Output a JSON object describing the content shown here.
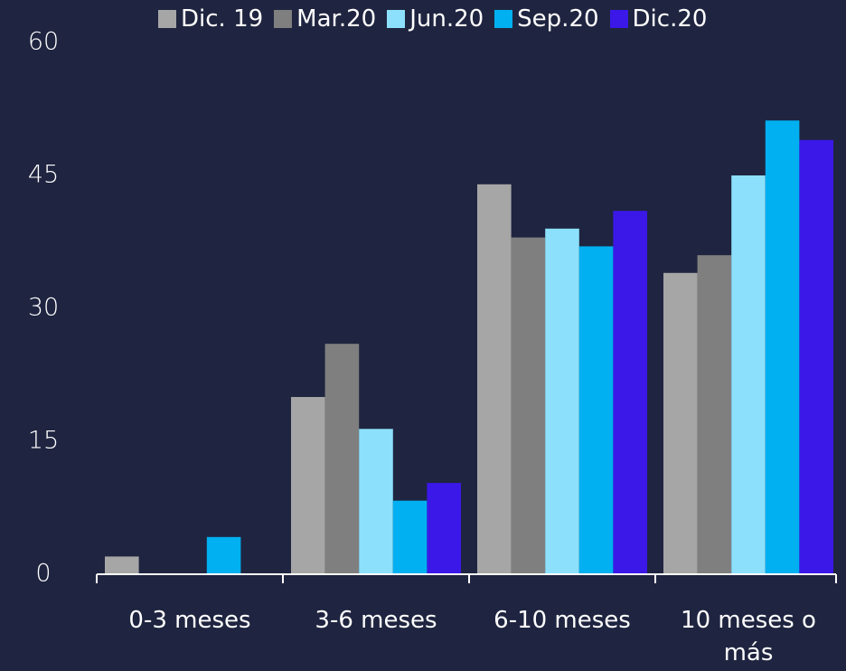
{
  "chart_data": {
    "type": "bar",
    "categories": [
      "0-3 meses",
      "3-6 meses",
      "6-10 meses",
      "10 meses o más"
    ],
    "series": [
      {
        "name": "Dic. 19",
        "color": "#a6a6a6",
        "values": [
          2,
          20,
          44,
          34
        ]
      },
      {
        "name": "Mar.20",
        "color": "#7f7f7f",
        "values": [
          0,
          26,
          38,
          36
        ]
      },
      {
        "name": "Jun.20",
        "color": "#8ce0fb",
        "values": [
          0,
          16.4,
          39,
          45
        ]
      },
      {
        "name": "Sep.20",
        "color": "#00b0f0",
        "values": [
          4.2,
          8.3,
          37,
          51.2
        ]
      },
      {
        "name": "Dic.20",
        "color": "#3b18e8",
        "values": [
          0,
          10.3,
          41,
          49
        ]
      }
    ],
    "ylim": [
      0,
      60
    ],
    "yticks": [
      0,
      15,
      30,
      45,
      60
    ],
    "grid": false,
    "legend": "top"
  }
}
